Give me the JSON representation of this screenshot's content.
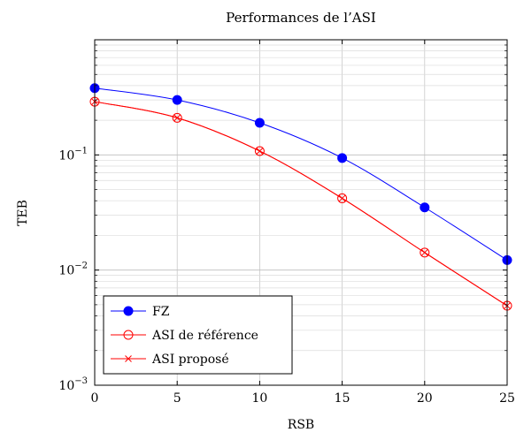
{
  "chart_data": {
    "type": "line",
    "title": "Performances de l’ASI",
    "xlabel": "RSB",
    "ylabel": "TEB",
    "x": [
      0,
      5,
      10,
      15,
      20,
      25
    ],
    "xlim": [
      0,
      25
    ],
    "ylim": [
      0.001,
      1
    ],
    "y_scale": "log",
    "x_ticks": [
      "0",
      "5",
      "10",
      "15",
      "20",
      "25"
    ],
    "y_ticks": [
      {
        "base": "10",
        "exp": "−3"
      },
      {
        "base": "10",
        "exp": "−2"
      },
      {
        "base": "10",
        "exp": "−1"
      }
    ],
    "grid": true,
    "legend_position": "bottom-left",
    "series": [
      {
        "name": "FZ",
        "color": "#0000ff",
        "marker": "filled-circle",
        "values": [
          0.38,
          0.3,
          0.19,
          0.094,
          0.035,
          0.0122
        ]
      },
      {
        "name": "ASI de référence",
        "color": "#ff0000",
        "marker": "open-circle",
        "values": [
          0.29,
          0.21,
          0.108,
          0.042,
          0.0142,
          0.0049
        ]
      },
      {
        "name": "ASI proposé",
        "color": "#ff0000",
        "marker": "x-mark",
        "values": [
          0.29,
          0.21,
          0.108,
          0.042,
          0.0142,
          0.0049
        ]
      }
    ]
  }
}
